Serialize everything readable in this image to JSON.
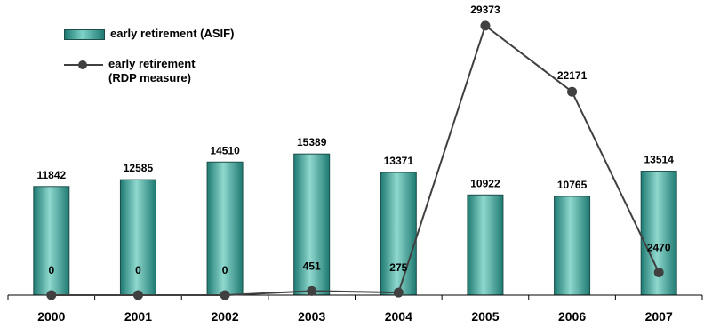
{
  "colors": {
    "bar_dark": "#1e7a72",
    "bar_light": "#8fd8ce",
    "bar_edge": "#1f4e4a",
    "line": "#404040",
    "axis": "#000000"
  },
  "chart_data": {
    "type": "bar",
    "title": "",
    "xlabel": "",
    "ylabel": "",
    "categories": [
      "2000",
      "2001",
      "2002",
      "2003",
      "2004",
      "2005",
      "2006",
      "2007"
    ],
    "ylim": [
      0,
      32000
    ],
    "grid": false,
    "legend_position": "top-left",
    "series": [
      {
        "name": "early retirement (ASIF)",
        "type": "bar",
        "values": [
          11842,
          12585,
          14510,
          15389,
          13371,
          10922,
          10765,
          13514
        ]
      },
      {
        "name": "early retirement\n(RDP measure)",
        "type": "line",
        "values": [
          0,
          0,
          0,
          451,
          275,
          29373,
          22171,
          2470
        ]
      }
    ]
  },
  "legend": {
    "bar_label": "early retirement (ASIF)",
    "line_label": "early retirement\n(RDP measure)"
  }
}
